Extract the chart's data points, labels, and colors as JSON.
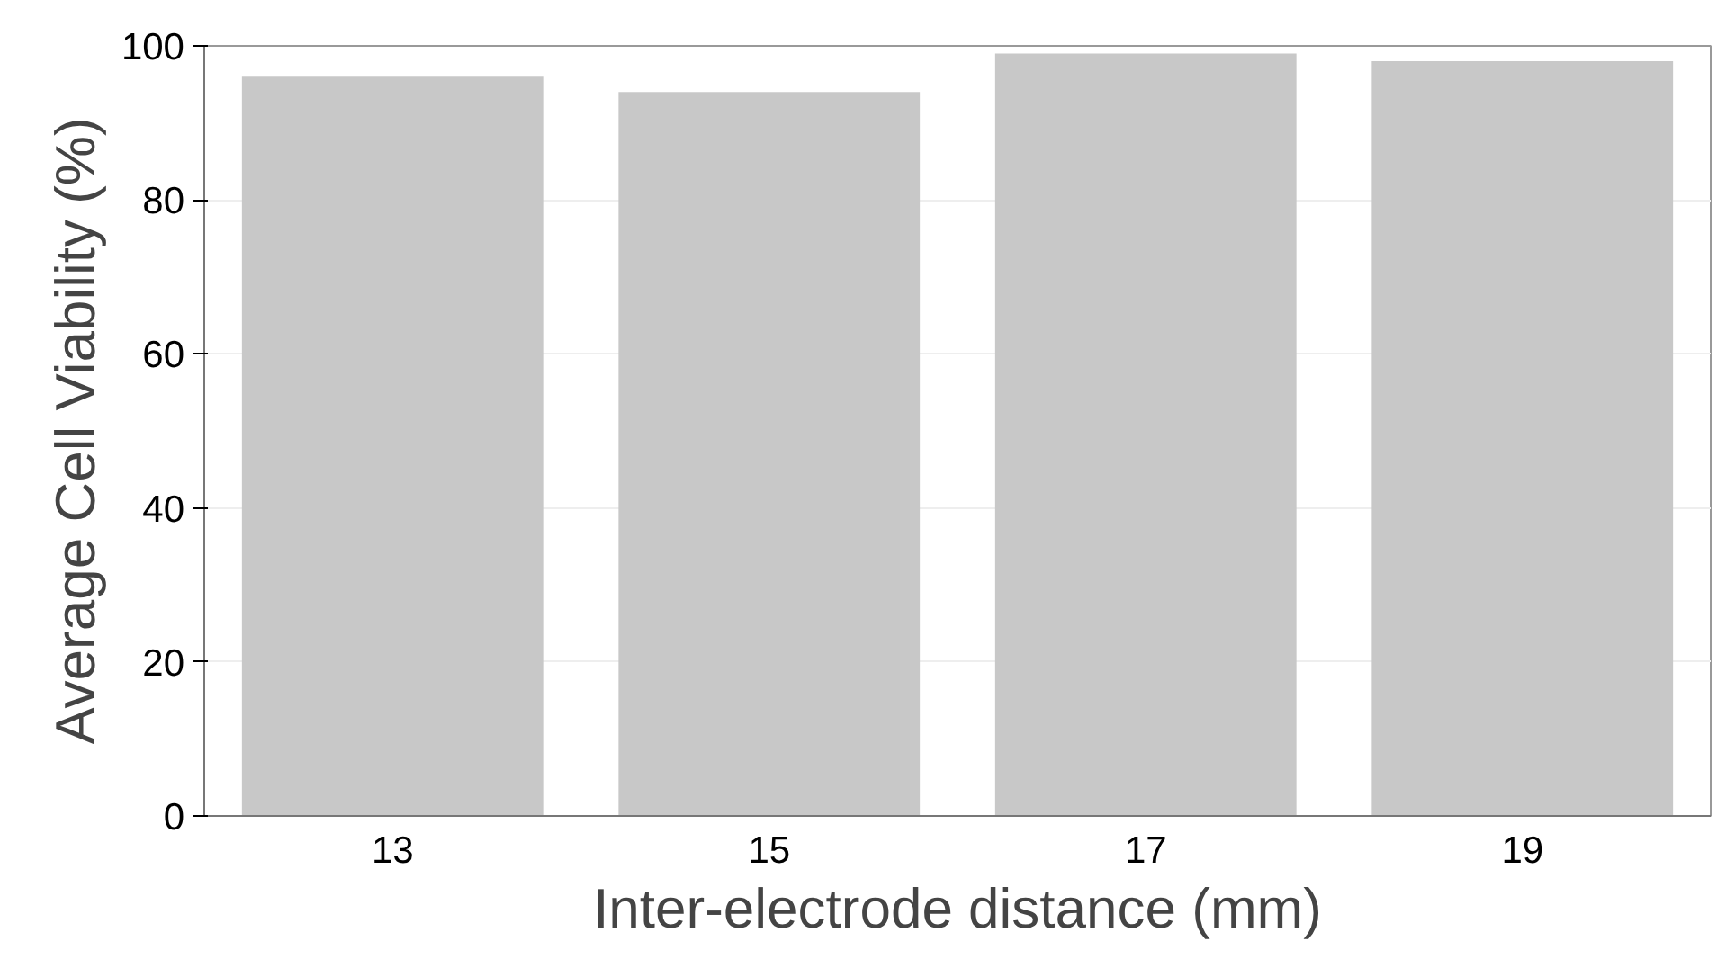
{
  "chart_data": {
    "type": "bar",
    "xlabel": "Inter-electrode distance (mm)",
    "ylabel": "Average Cell Viability (%)",
    "categories": [
      "13",
      "15",
      "17",
      "19"
    ],
    "values": [
      96,
      94,
      99,
      98
    ],
    "color": "#c8c8c8",
    "ylim": [
      0,
      100
    ],
    "yticks": [
      0,
      20,
      40,
      60,
      80,
      100
    ],
    "grid": "y"
  }
}
